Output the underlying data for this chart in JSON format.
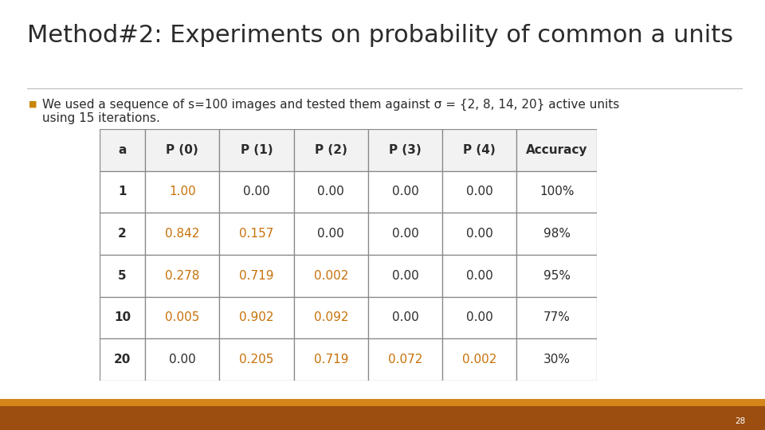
{
  "title": "Method#2: Experiments on probability of common a units",
  "title_fontsize": 22,
  "subtitle_line1": "We used a sequence of s=100 images and tested them against σ = {2, 8, 14, 20} active units",
  "subtitle_line2": "using 15 iterations.",
  "subtitle_fontsize": 11,
  "bullet_color": "#C8860A",
  "bg_color": "#FFFFFF",
  "footer_top_color": "#D4861A",
  "footer_bot_color": "#9B4E10",
  "page_number": "28",
  "table_headers": [
    "a",
    "P (0)",
    "P (1)",
    "P (2)",
    "P (3)",
    "P (4)",
    "Accuracy"
  ],
  "table_rows": [
    [
      "1",
      "1.00",
      "0.00",
      "0.00",
      "0.00",
      "0.00",
      "100%"
    ],
    [
      "2",
      "0.842",
      "0.157",
      "0.00",
      "0.00",
      "0.00",
      "98%"
    ],
    [
      "5",
      "0.278",
      "0.719",
      "0.002",
      "0.00",
      "0.00",
      "95%"
    ],
    [
      "10",
      "0.005",
      "0.902",
      "0.092",
      "0.00",
      "0.00",
      "77%"
    ],
    [
      "20",
      "0.00",
      "0.205",
      "0.719",
      "0.072",
      "0.002",
      "30%"
    ]
  ],
  "orange_color": "#C8720A",
  "dark_color": "#2B2B2B",
  "line_color": "#888888",
  "col_orange_map": [
    [
      false,
      true,
      false,
      false,
      false,
      false,
      false
    ],
    [
      false,
      true,
      true,
      false,
      false,
      false,
      false
    ],
    [
      false,
      true,
      true,
      true,
      false,
      false,
      false
    ],
    [
      false,
      true,
      true,
      true,
      false,
      false,
      false
    ],
    [
      false,
      false,
      true,
      true,
      true,
      true,
      false
    ]
  ],
  "col_bold_map": [
    [
      true,
      false,
      false,
      false,
      false,
      false,
      false
    ],
    [
      true,
      false,
      false,
      false,
      false,
      false,
      false
    ],
    [
      true,
      false,
      false,
      false,
      false,
      false,
      false
    ],
    [
      true,
      false,
      false,
      false,
      false,
      false,
      false
    ],
    [
      true,
      false,
      false,
      false,
      false,
      false,
      false
    ]
  ]
}
